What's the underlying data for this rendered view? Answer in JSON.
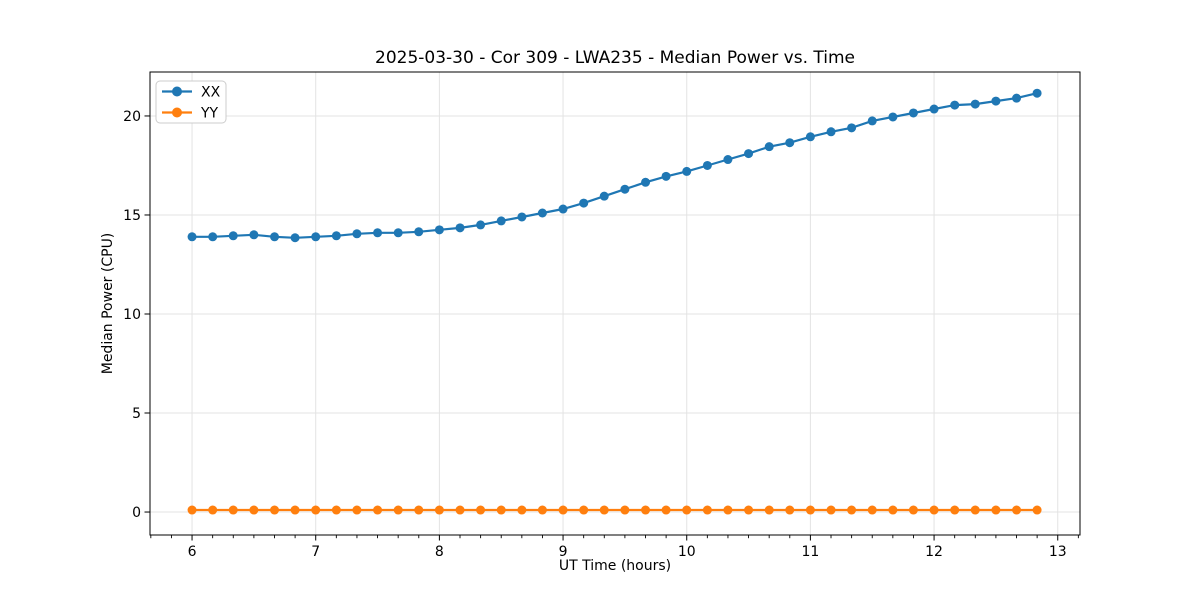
{
  "chart_data": {
    "type": "line",
    "title": "2025-03-30 - Cor 309 - LWA235 - Median Power vs. Time",
    "xlabel": "UT Time (hours)",
    "ylabel": "Median Power (CPU)",
    "xlim": [
      5.66,
      13.18
    ],
    "ylim": [
      -1.16,
      22.22
    ],
    "x_ticks": [
      6,
      7,
      8,
      9,
      10,
      11,
      12,
      13
    ],
    "y_ticks": [
      0,
      5,
      10,
      15,
      20
    ],
    "x_minor_tick_step": 0.16667,
    "grid": true,
    "legend_position": "upper left",
    "x": [
      6.0,
      6.167,
      6.333,
      6.5,
      6.667,
      6.833,
      7.0,
      7.167,
      7.333,
      7.5,
      7.667,
      7.833,
      8.0,
      8.167,
      8.333,
      8.5,
      8.667,
      8.833,
      9.0,
      9.167,
      9.333,
      9.5,
      9.667,
      9.833,
      10.0,
      10.167,
      10.333,
      10.5,
      10.667,
      10.833,
      11.0,
      11.167,
      11.333,
      11.5,
      11.667,
      11.833,
      12.0,
      12.167,
      12.333,
      12.5,
      12.667,
      12.833
    ],
    "series": [
      {
        "name": "XX",
        "color": "#1f77b4",
        "values": [
          13.9,
          13.9,
          13.95,
          14.0,
          13.9,
          13.85,
          13.9,
          13.95,
          14.05,
          14.1,
          14.1,
          14.15,
          14.25,
          14.35,
          14.5,
          14.7,
          14.9,
          15.1,
          15.3,
          15.6,
          15.95,
          16.3,
          16.65,
          16.95,
          17.2,
          17.5,
          17.8,
          18.1,
          18.45,
          18.65,
          18.95,
          19.2,
          19.4,
          19.75,
          19.95,
          20.15,
          20.35,
          20.55,
          20.6,
          20.75,
          20.9,
          21.15
        ]
      },
      {
        "name": "YY",
        "color": "#ff7f0e",
        "values": [
          0.1,
          0.1,
          0.1,
          0.1,
          0.1,
          0.1,
          0.1,
          0.1,
          0.1,
          0.1,
          0.1,
          0.1,
          0.1,
          0.1,
          0.1,
          0.1,
          0.1,
          0.1,
          0.1,
          0.1,
          0.1,
          0.1,
          0.1,
          0.1,
          0.1,
          0.1,
          0.1,
          0.1,
          0.1,
          0.1,
          0.1,
          0.1,
          0.1,
          0.1,
          0.1,
          0.1,
          0.1,
          0.1,
          0.1,
          0.1,
          0.1,
          0.1
        ]
      }
    ],
    "style": {
      "grid_color": "#e3e3e3",
      "spine_color": "#000000",
      "background": "#ffffff"
    }
  }
}
